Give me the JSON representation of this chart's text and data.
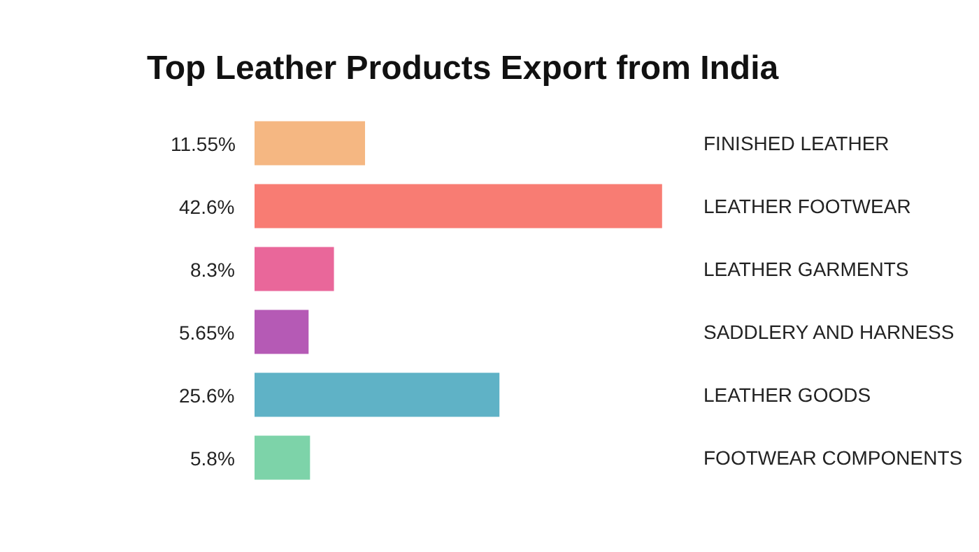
{
  "chart_data": {
    "type": "bar",
    "orientation": "horizontal",
    "title": "Top Leather Products Export from India",
    "categories": [
      "FINISHED LEATHER",
      "LEATHER FOOTWEAR",
      "LEATHER GARMENTS",
      "SADDLERY AND HARNESS",
      "LEATHER GOODS",
      "FOOTWEAR COMPONENTS"
    ],
    "values": [
      11.55,
      42.6,
      8.3,
      5.65,
      25.6,
      5.8
    ],
    "value_labels": [
      "11.55%",
      "42.6%",
      "8.3%",
      "5.65%",
      "25.6%",
      "5.8%"
    ],
    "colors": [
      "#f5b782",
      "#f87c73",
      "#e9679a",
      "#b55ab5",
      "#5fb2c6",
      "#7dd3a9"
    ],
    "legend": false
  }
}
